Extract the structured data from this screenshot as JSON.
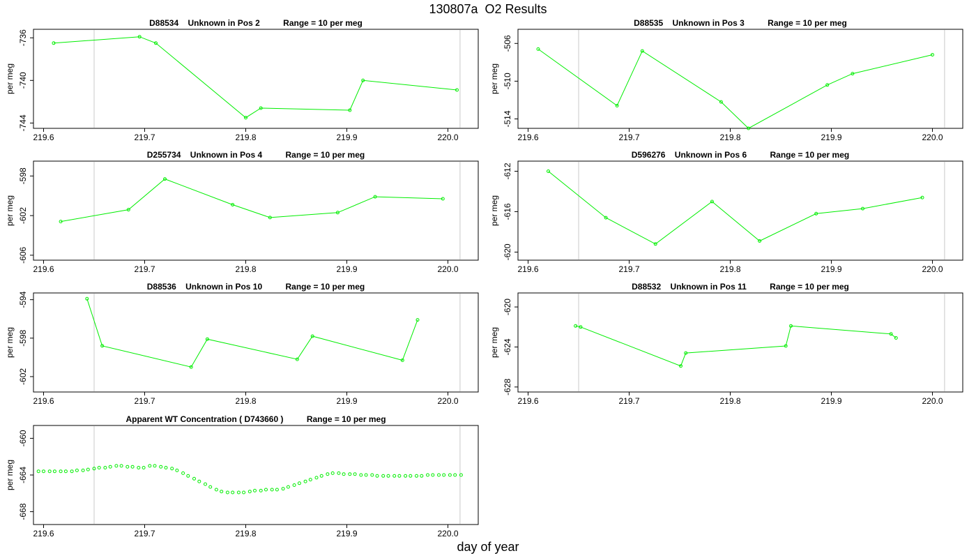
{
  "page": {
    "title": "130807a  O2 Results",
    "xlabel": "day of year"
  },
  "chart_data": [
    {
      "type": "line",
      "title": "D88534    Unknown in Pos 2          Range = 10 per meg",
      "ylabel": "per meg",
      "xlim": [
        219.59,
        220.03
      ],
      "ylim": [
        -744.5,
        -735.2
      ],
      "xticks": [
        "219.6",
        "219.7",
        "219.8",
        "219.9",
        "220.0"
      ],
      "yticks": [
        "-736",
        "-740",
        "-744"
      ],
      "vlines": [
        219.65,
        220.012
      ],
      "series": [
        {
          "x": [
            219.61,
            219.695,
            219.711,
            219.8,
            219.815,
            219.903,
            219.916,
            220.009
          ],
          "y": [
            -736.5,
            -735.9,
            -736.5,
            -743.5,
            -742.6,
            -742.8,
            -740.0,
            -740.9
          ]
        }
      ]
    },
    {
      "type": "line",
      "title": "D88535    Unknown in Pos 3          Range = 10 per meg",
      "ylabel": "per meg",
      "xlim": [
        219.59,
        220.03
      ],
      "ylim": [
        -515.0,
        -504.5
      ],
      "xticks": [
        "219.6",
        "219.7",
        "219.8",
        "219.9",
        "220.0"
      ],
      "yticks": [
        "-506",
        "-510",
        "-514"
      ],
      "vlines": [
        219.65,
        220.012
      ],
      "series": [
        {
          "x": [
            219.61,
            219.688,
            219.713,
            219.791,
            219.818,
            219.896,
            219.921,
            220.0
          ],
          "y": [
            -506.6,
            -512.6,
            -506.8,
            -512.2,
            -515.0,
            -510.4,
            -509.2,
            -507.2
          ]
        }
      ]
    },
    {
      "type": "line",
      "title": "D255734    Unknown in Pos 4          Range = 10 per meg",
      "ylabel": "per meg",
      "xlim": [
        219.59,
        220.03
      ],
      "ylim": [
        -606.5,
        -596.5
      ],
      "xticks": [
        "219.6",
        "219.7",
        "219.8",
        "219.9",
        "220.0"
      ],
      "yticks": [
        "-598",
        "-602",
        "-606"
      ],
      "vlines": [
        219.65,
        220.012
      ],
      "series": [
        {
          "x": [
            219.617,
            219.684,
            219.72,
            219.787,
            219.824,
            219.891,
            219.928,
            219.995
          ],
          "y": [
            -602.6,
            -601.4,
            -598.3,
            -600.9,
            -602.2,
            -601.7,
            -600.1,
            -600.3
          ]
        }
      ]
    },
    {
      "type": "line",
      "title": "D596276    Unknown in Pos 6          Range = 10 per meg",
      "ylabel": "per meg",
      "xlim": [
        219.59,
        220.03
      ],
      "ylim": [
        -620.8,
        -611.0
      ],
      "xticks": [
        "219.6",
        "219.7",
        "219.8",
        "219.9",
        "220.0"
      ],
      "yticks": [
        "-612",
        "-616",
        "-620"
      ],
      "vlines": [
        219.65,
        220.012
      ],
      "series": [
        {
          "x": [
            219.62,
            219.677,
            219.726,
            219.782,
            219.829,
            219.885,
            219.931,
            219.99
          ],
          "y": [
            -612.0,
            -616.6,
            -619.2,
            -615.0,
            -618.9,
            -616.2,
            -615.7,
            -614.6
          ]
        }
      ]
    },
    {
      "type": "line",
      "title": "D88536    Unknown in Pos 10          Range = 10 per meg",
      "ylabel": "per meg",
      "xlim": [
        219.59,
        220.03
      ],
      "ylim": [
        -603.6,
        -593.3
      ],
      "xticks": [
        "219.6",
        "219.7",
        "219.8",
        "219.9",
        "220.0"
      ],
      "yticks": [
        "-594",
        "-598",
        "-602"
      ],
      "vlines": [
        219.65,
        220.012
      ],
      "series": [
        {
          "x": [
            219.643,
            219.658,
            219.746,
            219.762,
            219.851,
            219.866,
            219.955,
            219.97
          ],
          "y": [
            -593.9,
            -598.8,
            -601.0,
            -598.1,
            -600.2,
            -597.8,
            -600.3,
            -596.1
          ]
        }
      ]
    },
    {
      "type": "line",
      "title": "D88532    Unknown in Pos 11          Range = 10 per meg",
      "ylabel": "per meg",
      "xlim": [
        219.59,
        220.03
      ],
      "ylim": [
        -628.5,
        -618.6
      ],
      "xticks": [
        "219.6",
        "219.7",
        "219.8",
        "219.9",
        "220.0"
      ],
      "yticks": [
        "-620",
        "-624",
        "-628"
      ],
      "vlines": [
        219.65,
        220.012
      ],
      "series": [
        {
          "x": [
            219.647,
            219.652,
            219.751,
            219.756,
            219.855,
            219.86,
            219.959,
            219.964
          ],
          "y": [
            -621.9,
            -622.0,
            -625.9,
            -624.6,
            -623.9,
            -621.9,
            -622.7,
            -623.1
          ]
        }
      ]
    },
    {
      "type": "scatter",
      "title": "Apparent WT Concentration ( D743660 )          Range = 10 per meg",
      "ylabel": "per meg",
      "xlim": [
        219.59,
        220.03
      ],
      "ylim": [
        -669.4,
        -658.6
      ],
      "xticks": [
        "219.6",
        "219.7",
        "219.8",
        "219.9",
        "220.0"
      ],
      "yticks": [
        "-660",
        "-664",
        "-668"
      ],
      "vlines": [
        219.65,
        220.012
      ],
      "series": [
        {
          "x": [
            219.595,
            219.6,
            219.606,
            219.611,
            219.617,
            219.622,
            219.628,
            219.633,
            219.639,
            219.644,
            219.65,
            219.655,
            219.661,
            219.666,
            219.672,
            219.677,
            219.683,
            219.688,
            219.694,
            219.699,
            219.705,
            219.71,
            219.716,
            219.721,
            219.727,
            219.732,
            219.738,
            219.743,
            219.749,
            219.754,
            219.76,
            219.765,
            219.771,
            219.776,
            219.782,
            219.787,
            219.793,
            219.798,
            219.804,
            219.809,
            219.815,
            219.82,
            219.826,
            219.831,
            219.837,
            219.842,
            219.848,
            219.853,
            219.859,
            219.864,
            219.87,
            219.875,
            219.881,
            219.886,
            219.892,
            219.897,
            219.903,
            219.908,
            219.914,
            219.919,
            219.925,
            219.93,
            219.936,
            219.941,
            219.947,
            219.952,
            219.958,
            219.963,
            219.969,
            219.974,
            219.98,
            219.985,
            219.991,
            219.996,
            220.002,
            220.007,
            220.013
          ],
          "y": [
            -663.6,
            -663.6,
            -663.6,
            -663.6,
            -663.6,
            -663.6,
            -663.6,
            -663.5,
            -663.5,
            -663.4,
            -663.3,
            -663.2,
            -663.2,
            -663.1,
            -663.0,
            -663.0,
            -663.1,
            -663.1,
            -663.2,
            -663.2,
            -663.0,
            -663.0,
            -663.1,
            -663.2,
            -663.3,
            -663.5,
            -663.8,
            -664.1,
            -664.4,
            -664.7,
            -665.0,
            -665.3,
            -665.6,
            -665.8,
            -665.9,
            -665.9,
            -665.9,
            -665.9,
            -665.8,
            -665.7,
            -665.7,
            -665.6,
            -665.6,
            -665.6,
            -665.5,
            -665.3,
            -665.1,
            -664.9,
            -664.7,
            -664.5,
            -664.3,
            -664.1,
            -663.9,
            -663.8,
            -663.8,
            -663.9,
            -663.9,
            -663.9,
            -664.0,
            -664.0,
            -664.0,
            -664.1,
            -664.1,
            -664.1,
            -664.1,
            -664.1,
            -664.1,
            -664.1,
            -664.1,
            -664.1,
            -664.0,
            -664.0,
            -664.0,
            -664.0,
            -664.0,
            -664.0,
            -664.0
          ]
        }
      ]
    }
  ]
}
